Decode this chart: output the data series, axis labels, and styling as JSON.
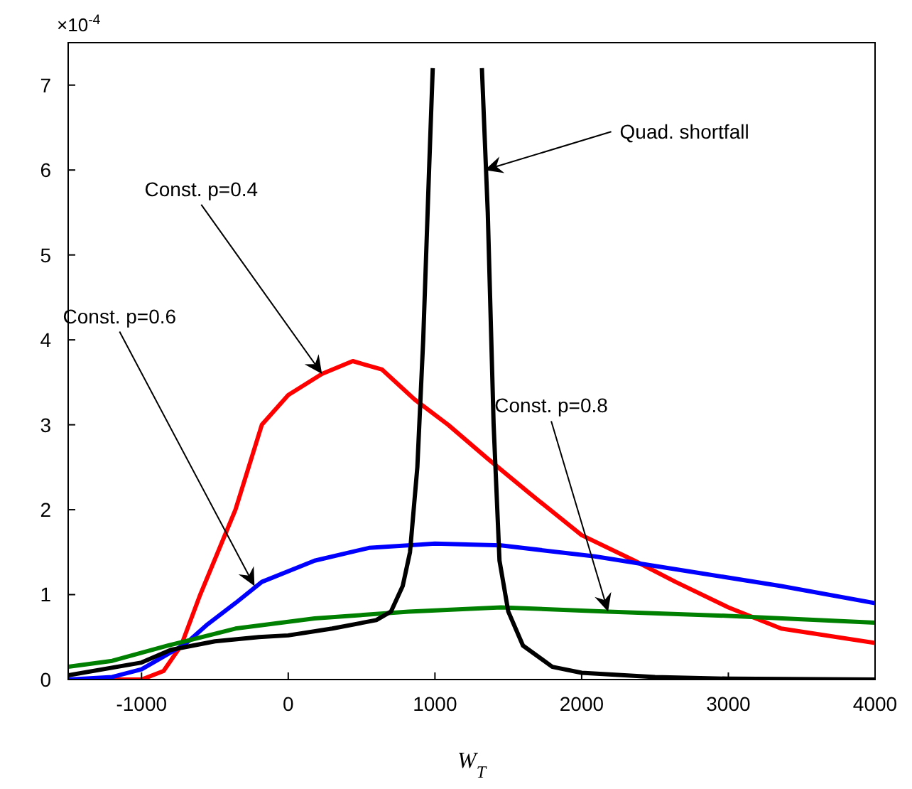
{
  "chart_data": {
    "type": "line",
    "xlabel": "W$_{T}$",
    "xlim": [
      -1500,
      4000
    ],
    "xticks": [
      -1000,
      0,
      1000,
      2000,
      3000,
      4000
    ],
    "ylim": [
      0,
      7.5
    ],
    "yticks": [
      0,
      1,
      2,
      3,
      4,
      5,
      6,
      7
    ],
    "marker": "none",
    "line_style": "solid",
    "series": [
      {
        "color": "#ff0000",
        "x": [
          -1500,
          -1000,
          -850,
          -730,
          -600,
          -480,
          -360,
          -180,
          0,
          230,
          440,
          640,
          860,
          1090,
          1360,
          1640,
          2000,
          2360,
          2640,
          3000,
          3360,
          4000
        ],
        "values": [
          0,
          0,
          0.1,
          0.4,
          1.0,
          1.5,
          2.0,
          3.0,
          3.35,
          3.6,
          3.75,
          3.65,
          3.3,
          3.0,
          2.6,
          2.2,
          1.7,
          1.4,
          1.15,
          0.85,
          0.6,
          0.43
        ]
      },
      {
        "color": "#0000ff",
        "x": [
          -1500,
          -1200,
          -1000,
          -820,
          -700,
          -550,
          -360,
          -180,
          180,
          550,
          1000,
          1450,
          2090,
          2820,
          3360,
          4000
        ],
        "values": [
          0,
          0.03,
          0.12,
          0.3,
          0.42,
          0.65,
          0.9,
          1.15,
          1.4,
          1.55,
          1.6,
          1.58,
          1.45,
          1.25,
          1.1,
          0.9
        ]
      },
      {
        "color": "#008000",
        "x": [
          -1500,
          -1200,
          -820,
          -360,
          180,
          820,
          1450,
          2180,
          3000,
          4000
        ],
        "values": [
          0.15,
          0.22,
          0.4,
          0.6,
          0.72,
          0.8,
          0.85,
          0.8,
          0.75,
          0.67
        ]
      },
      {
        "color": "#000000",
        "x": [
          -1500,
          -1000,
          -800,
          -500,
          -200,
          0,
          300,
          600,
          700,
          780,
          830,
          880,
          920,
          960,
          985,
          1100,
          1320,
          1360,
          1400,
          1440,
          1500,
          1600,
          1800,
          2000,
          2500,
          3000,
          4000
        ],
        "values": [
          0.05,
          0.2,
          0.35,
          0.45,
          0.5,
          0.52,
          0.6,
          0.7,
          0.8,
          1.1,
          1.5,
          2.5,
          4.0,
          6.0,
          7.2,
          null,
          7.2,
          5.5,
          3.0,
          1.4,
          0.8,
          0.4,
          0.15,
          0.08,
          0.03,
          0.01,
          0
        ]
      }
    ],
    "annotations": [
      "×10$^{-4}$",
      {
        "text": "Quad. shortfall",
        "x": 1340,
        "y": 6.0
      },
      {
        "text": "Const. p=0.4",
        "x": 230,
        "y": 3.6
      },
      {
        "text": "Const. p=0.6",
        "x": -230,
        "y": 1.1
      },
      {
        "text": "Const. p=0.8",
        "x": 2180,
        "y": 0.8
      }
    ]
  }
}
